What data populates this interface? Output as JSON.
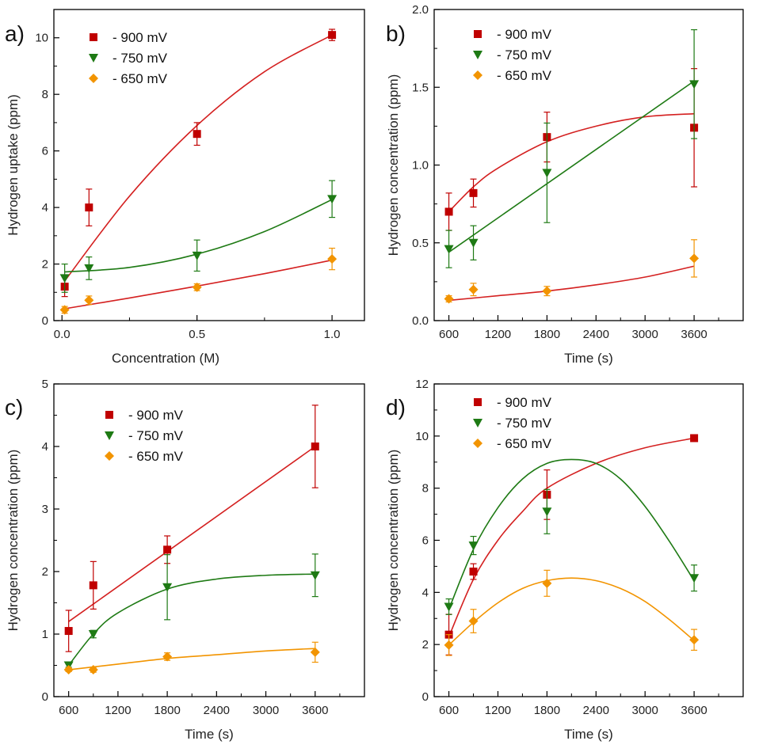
{
  "colors": {
    "s900": "#c00000",
    "s750": "#1e7a14",
    "s650": "#f29400",
    "fit_red": "#d42020"
  },
  "chart_data": [
    {
      "type": "scatter",
      "panel": "a)",
      "xlabel": "Concentration (M)",
      "ylabel": "Hydrogen uptake (ppm)",
      "xlim": [
        -0.03,
        1.12
      ],
      "ylim": [
        0,
        11
      ],
      "xticks": [
        0.0,
        0.5,
        1.0
      ],
      "xtick_labels": [
        "0.0",
        "0.5",
        "1.0"
      ],
      "yticks": [
        0,
        2,
        4,
        6,
        8,
        10
      ],
      "ytick_labels": [
        "0",
        "2",
        "4",
        "6",
        "8",
        "10"
      ],
      "legend_position": "top-left",
      "series": [
        {
          "name": "- 900 mV",
          "marker": "square",
          "color_key": "s900",
          "x": [
            0.01,
            0.1,
            0.5,
            1.0
          ],
          "y": [
            1.2,
            4.0,
            6.6,
            10.1
          ],
          "err": [
            0.35,
            0.65,
            0.4,
            0.2
          ],
          "fit_color_key": "fit_red",
          "fit": [
            [
              0.01,
              1.4
            ],
            [
              0.25,
              4.4
            ],
            [
              0.5,
              6.9
            ],
            [
              0.75,
              8.8
            ],
            [
              1.0,
              10.1
            ]
          ]
        },
        {
          "name": "- 750 mV",
          "marker": "triangle-down",
          "color_key": "s750",
          "x": [
            0.01,
            0.1,
            0.5,
            1.0
          ],
          "y": [
            1.5,
            1.85,
            2.3,
            4.3
          ],
          "err": [
            0.5,
            0.4,
            0.55,
            0.65
          ],
          "fit_color_key": "s750",
          "fit": [
            [
              0.01,
              1.72
            ],
            [
              0.25,
              1.88
            ],
            [
              0.5,
              2.35
            ],
            [
              0.75,
              3.15
            ],
            [
              1.0,
              4.28
            ]
          ]
        },
        {
          "name": "- 650 mV",
          "marker": "diamond",
          "color_key": "s650",
          "x": [
            0.01,
            0.1,
            0.5,
            1.0
          ],
          "y": [
            0.38,
            0.72,
            1.18,
            2.18
          ],
          "err": [
            0.12,
            0.15,
            0.12,
            0.38
          ],
          "fit_color_key": "fit_red",
          "fit": [
            [
              0.01,
              0.42
            ],
            [
              0.25,
              0.8
            ],
            [
              0.5,
              1.22
            ],
            [
              0.75,
              1.66
            ],
            [
              1.0,
              2.14
            ]
          ]
        }
      ]
    },
    {
      "type": "scatter",
      "panel": "b)",
      "xlabel": "Time (s)",
      "ylabel": "Hydrogen concentration (ppm)",
      "xlim": [
        420,
        4200
      ],
      "ylim": [
        0,
        2.0
      ],
      "xticks": [
        600,
        1200,
        1800,
        2400,
        3000,
        3600
      ],
      "xtick_labels": [
        "600",
        "1200",
        "1800",
        "2400",
        "3000",
        "3600"
      ],
      "yticks": [
        0.0,
        0.5,
        1.0,
        1.5,
        2.0
      ],
      "ytick_labels": [
        "0.0",
        "0.5",
        "1.0",
        "1.5",
        "2.0"
      ],
      "legend_position": "top-left",
      "series": [
        {
          "name": "- 900 mV",
          "marker": "square",
          "color_key": "s900",
          "x": [
            600,
            900,
            1800,
            3600
          ],
          "y": [
            0.7,
            0.82,
            1.18,
            1.24
          ],
          "err": [
            0.12,
            0.09,
            0.16,
            0.38
          ],
          "fit_color_key": "fit_red",
          "fit": [
            [
              600,
              0.7
            ],
            [
              900,
              0.86
            ],
            [
              1200,
              0.98
            ],
            [
              1800,
              1.15
            ],
            [
              2400,
              1.25
            ],
            [
              3000,
              1.31
            ],
            [
              3600,
              1.33
            ]
          ]
        },
        {
          "name": "- 750 mV",
          "marker": "triangle-down",
          "color_key": "s750",
          "x": [
            600,
            900,
            1800,
            3600
          ],
          "y": [
            0.46,
            0.5,
            0.95,
            1.52
          ],
          "err": [
            0.12,
            0.11,
            0.32,
            0.35
          ],
          "fit_color_key": "s750",
          "fit": [
            [
              600,
              0.44
            ],
            [
              3600,
              1.54
            ]
          ]
        },
        {
          "name": "- 650 mV",
          "marker": "diamond",
          "color_key": "s650",
          "x": [
            600,
            900,
            1800,
            3600
          ],
          "y": [
            0.14,
            0.2,
            0.19,
            0.4
          ],
          "err": [
            0.02,
            0.04,
            0.03,
            0.12
          ],
          "fit_color_key": "fit_red",
          "fit": [
            [
              600,
              0.13
            ],
            [
              1200,
              0.16
            ],
            [
              1800,
              0.19
            ],
            [
              2400,
              0.23
            ],
            [
              3000,
              0.28
            ],
            [
              3600,
              0.35
            ]
          ]
        }
      ]
    },
    {
      "type": "scatter",
      "panel": "c)",
      "xlabel": "Time (s)",
      "ylabel": "Hydrogen concentration (ppm)",
      "xlim": [
        420,
        4200
      ],
      "ylim": [
        0,
        5
      ],
      "xticks": [
        600,
        1200,
        1800,
        2400,
        3000,
        3600
      ],
      "xtick_labels": [
        "600",
        "1200",
        "1800",
        "2400",
        "3000",
        "3600"
      ],
      "yticks": [
        0,
        1,
        2,
        3,
        4,
        5
      ],
      "ytick_labels": [
        "0",
        "1",
        "2",
        "3",
        "4",
        "5"
      ],
      "legend_position": "top-left",
      "series": [
        {
          "name": "- 900 mV",
          "marker": "square",
          "color_key": "s900",
          "x": [
            600,
            900,
            1800,
            3600
          ],
          "y": [
            1.05,
            1.78,
            2.35,
            4.0
          ],
          "err": [
            0.33,
            0.38,
            0.22,
            0.66
          ],
          "fit_color_key": "fit_red",
          "fit": [
            [
              600,
              1.2
            ],
            [
              3600,
              4.0
            ]
          ]
        },
        {
          "name": "- 750 mV",
          "marker": "triangle-down",
          "color_key": "s750",
          "x": [
            600,
            900,
            1800,
            3600
          ],
          "y": [
            0.5,
            1.0,
            1.75,
            1.94
          ],
          "err": [
            0.03,
            0.06,
            0.52,
            0.34
          ],
          "fit_color_key": "s750",
          "fit": [
            [
              600,
              0.5
            ],
            [
              900,
              1.0
            ],
            [
              1200,
              1.34
            ],
            [
              1800,
              1.72
            ],
            [
              2400,
              1.88
            ],
            [
              3000,
              1.94
            ],
            [
              3600,
              1.96
            ]
          ]
        },
        {
          "name": "- 650 mV",
          "marker": "diamond",
          "color_key": "s650",
          "x": [
            600,
            900,
            1800,
            3600
          ],
          "y": [
            0.43,
            0.43,
            0.64,
            0.71
          ],
          "err": [
            0.03,
            0.04,
            0.06,
            0.16
          ],
          "fit_color_key": "s650",
          "fit": [
            [
              600,
              0.43
            ],
            [
              1200,
              0.52
            ],
            [
              1800,
              0.61
            ],
            [
              2400,
              0.67
            ],
            [
              3000,
              0.73
            ],
            [
              3600,
              0.77
            ]
          ]
        }
      ]
    },
    {
      "type": "scatter",
      "panel": "d)",
      "xlabel": "Time (s)",
      "ylabel": "Hydrogen concentration (ppm)",
      "xlim": [
        420,
        4200
      ],
      "ylim": [
        0,
        12
      ],
      "xticks": [
        600,
        1200,
        1800,
        2400,
        3000,
        3600
      ],
      "xtick_labels": [
        "600",
        "1200",
        "1800",
        "2400",
        "3000",
        "3600"
      ],
      "yticks": [
        0,
        2,
        4,
        6,
        8,
        10,
        12
      ],
      "ytick_labels": [
        "0",
        "2",
        "4",
        "6",
        "8",
        "10",
        "12"
      ],
      "legend_position": "top-left",
      "series": [
        {
          "name": "- 900 mV",
          "marker": "square",
          "color_key": "s900",
          "x": [
            600,
            900,
            1800,
            3600
          ],
          "y": [
            2.38,
            4.8,
            7.75,
            9.92
          ],
          "err": [
            0.78,
            0.3,
            0.95,
            0.12
          ],
          "fit_color_key": "fit_red",
          "fit": [
            [
              600,
              2.3
            ],
            [
              900,
              4.5
            ],
            [
              1200,
              6.0
            ],
            [
              1500,
              7.1
            ],
            [
              1800,
              8.0
            ],
            [
              2400,
              8.95
            ],
            [
              3000,
              9.55
            ],
            [
              3600,
              9.92
            ]
          ]
        },
        {
          "name": "- 750 mV",
          "marker": "triangle-down",
          "color_key": "s750",
          "x": [
            600,
            900,
            1800,
            3600
          ],
          "y": [
            3.45,
            5.8,
            7.1,
            4.55
          ],
          "err": [
            0.3,
            0.35,
            0.85,
            0.5
          ],
          "fit_color_key": "s750",
          "fit": [
            [
              600,
              3.35
            ],
            [
              900,
              5.65
            ],
            [
              1200,
              7.25
            ],
            [
              1500,
              8.35
            ],
            [
              1800,
              8.95
            ],
            [
              2100,
              9.1
            ],
            [
              2400,
              8.95
            ],
            [
              2700,
              8.35
            ],
            [
              3000,
              7.3
            ],
            [
              3300,
              5.95
            ],
            [
              3600,
              4.45
            ]
          ]
        },
        {
          "name": "- 650 mV",
          "marker": "diamond",
          "color_key": "s650",
          "x": [
            600,
            900,
            1800,
            3600
          ],
          "y": [
            1.98,
            2.9,
            4.35,
            2.18
          ],
          "err": [
            0.4,
            0.45,
            0.5,
            0.4
          ],
          "fit_color_key": "s650",
          "fit": [
            [
              600,
              1.98
            ],
            [
              900,
              2.85
            ],
            [
              1200,
              3.6
            ],
            [
              1500,
              4.15
            ],
            [
              1800,
              4.45
            ],
            [
              2100,
              4.55
            ],
            [
              2400,
              4.45
            ],
            [
              2700,
              4.15
            ],
            [
              3000,
              3.65
            ],
            [
              3300,
              2.95
            ],
            [
              3600,
              2.15
            ]
          ]
        }
      ]
    }
  ]
}
